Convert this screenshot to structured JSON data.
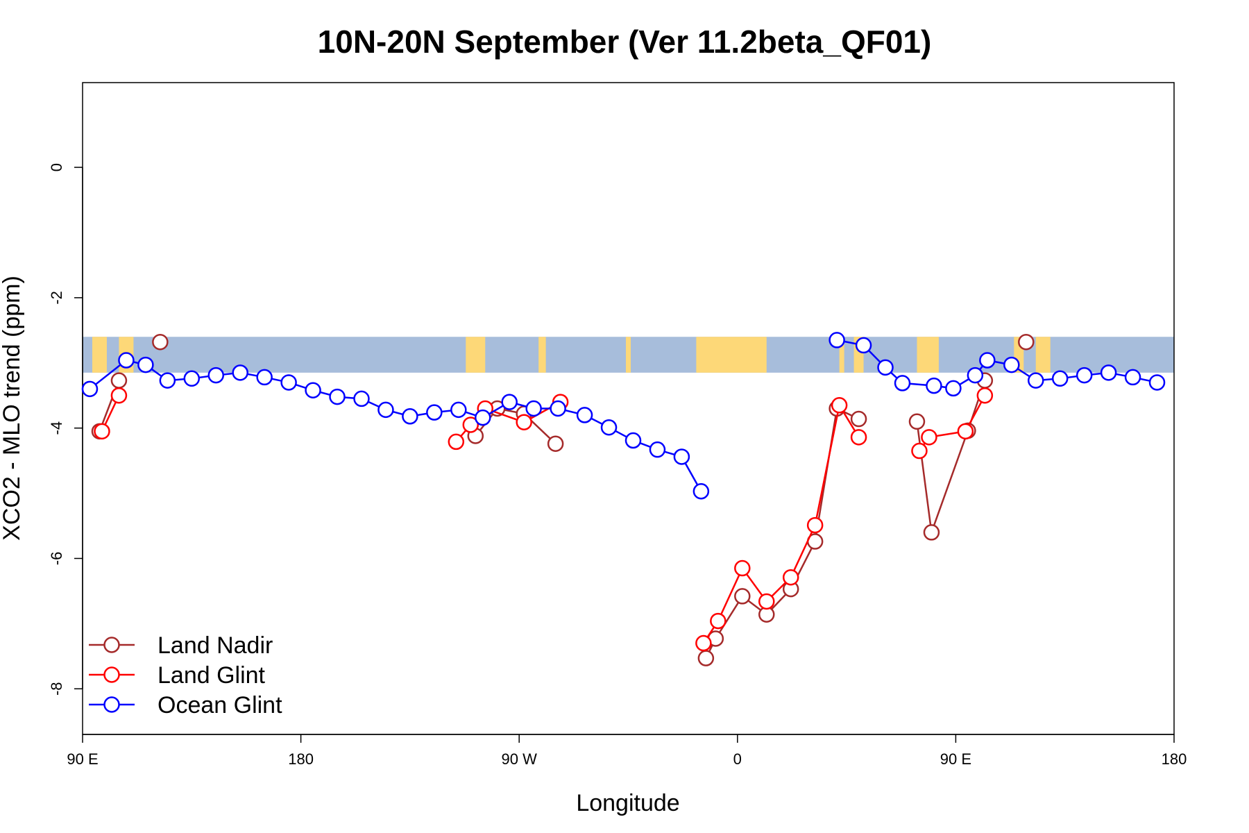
{
  "chart_data": {
    "type": "line",
    "title": "10N-20N September (Ver 11.2beta_QF01)",
    "xlabel": "Longitude",
    "ylabel": "XCO2 - MLO trend (ppm)",
    "x_unit": "degrees longitude (unwrapped, 90 E = 90, 180 = 180, 90 W = 270, 0 = 360, 90 E = 450, 180 = 540)",
    "xlim": [
      90,
      540
    ],
    "ylim": [
      -8.7,
      1.3
    ],
    "x_ticks": [
      {
        "value": 90,
        "label": "90 E"
      },
      {
        "value": 180,
        "label": "180"
      },
      {
        "value": 270,
        "label": "90 W"
      },
      {
        "value": 360,
        "label": "0"
      },
      {
        "value": 450,
        "label": "90 E"
      },
      {
        "value": 540,
        "label": "180"
      }
    ],
    "y_ticks": [
      {
        "value": 0,
        "label": "0"
      },
      {
        "value": -2,
        "label": "-2"
      },
      {
        "value": -4,
        "label": "-4"
      },
      {
        "value": -6,
        "label": "-6"
      },
      {
        "value": -8,
        "label": "-8"
      }
    ],
    "legend": {
      "position": "bottom-left",
      "entries": [
        {
          "name": "Land Nadir",
          "color": "#A52A2A"
        },
        {
          "name": "Land Glint",
          "color": "#FF0000"
        },
        {
          "name": "Ocean Glint",
          "color": "#0000FF"
        }
      ]
    },
    "map_band": {
      "description": "world map strip 10N-20N",
      "y_range": [
        -3.15,
        -2.6
      ],
      "ocean_color": "#A7BDDB",
      "land_color": "#FDD878",
      "land_segments": [
        [
          94,
          100
        ],
        [
          105,
          111
        ],
        [
          248,
          256
        ],
        [
          278,
          281
        ],
        [
          314,
          316
        ],
        [
          343,
          372
        ],
        [
          402,
          404
        ],
        [
          408,
          412
        ],
        [
          434,
          443
        ],
        [
          474,
          478
        ],
        [
          483,
          489
        ]
      ]
    },
    "series": [
      {
        "name": "Land Nadir",
        "color": "#A52A2A",
        "segments": [
          [
            [
              97,
              -4.05
            ],
            [
              105,
              -3.27
            ]
          ],
          [
            [
              122,
              -2.68
            ]
          ],
          [
            [
              252,
              -4.12
            ],
            [
              261,
              -3.7
            ],
            [
              272,
              -3.78
            ],
            [
              285,
              -4.24
            ]
          ],
          [
            [
              347,
              -7.53
            ],
            [
              351,
              -7.23
            ],
            [
              362,
              -6.58
            ],
            [
              372,
              -6.86
            ],
            [
              382,
              -6.47
            ],
            [
              392,
              -5.74
            ],
            [
              401,
              -3.7
            ],
            [
              410,
              -3.86
            ]
          ],
          [
            [
              434,
              -3.9
            ],
            [
              440,
              -5.6
            ],
            [
              455,
              -4.04
            ],
            [
              462,
              -3.27
            ]
          ],
          [
            [
              479,
              -2.68
            ]
          ]
        ]
      },
      {
        "name": "Land Glint",
        "color": "#FF0000",
        "segments": [
          [
            [
              98,
              -4.05
            ],
            [
              105,
              -3.5
            ]
          ],
          [
            [
              244,
              -4.21
            ],
            [
              250,
              -3.95
            ],
            [
              256,
              -3.7
            ],
            [
              272,
              -3.91
            ],
            [
              287,
              -3.6
            ]
          ],
          [
            [
              346,
              -7.3
            ],
            [
              352,
              -6.96
            ],
            [
              362,
              -6.15
            ],
            [
              372,
              -6.66
            ],
            [
              382,
              -6.29
            ],
            [
              392,
              -5.49
            ],
            [
              402,
              -3.65
            ],
            [
              410,
              -4.14
            ]
          ],
          [
            [
              435,
              -4.35
            ],
            [
              439,
              -4.14
            ],
            [
              454,
              -4.05
            ],
            [
              462,
              -3.5
            ]
          ]
        ]
      },
      {
        "name": "Ocean Glint",
        "color": "#0000FF",
        "segments": [
          [
            [
              93,
              -3.4
            ],
            [
              108,
              -2.96
            ],
            [
              116,
              -3.03
            ],
            [
              125,
              -3.27
            ],
            [
              135,
              -3.24
            ],
            [
              145,
              -3.19
            ],
            [
              155,
              -3.15
            ],
            [
              165,
              -3.22
            ],
            [
              175,
              -3.3
            ],
            [
              185,
              -3.42
            ],
            [
              195,
              -3.52
            ],
            [
              205,
              -3.55
            ],
            [
              215,
              -3.72
            ],
            [
              225,
              -3.82
            ],
            [
              235,
              -3.76
            ],
            [
              245,
              -3.72
            ],
            [
              255,
              -3.84
            ],
            [
              266,
              -3.6
            ],
            [
              276,
              -3.7
            ],
            [
              286,
              -3.7
            ],
            [
              297,
              -3.8
            ],
            [
              307,
              -3.99
            ],
            [
              317,
              -4.19
            ],
            [
              327,
              -4.33
            ],
            [
              337,
              -4.44
            ],
            [
              345,
              -4.97
            ]
          ],
          [
            [
              401,
              -2.65
            ],
            [
              412,
              -2.73
            ],
            [
              421,
              -3.07
            ],
            [
              428,
              -3.31
            ],
            [
              441,
              -3.35
            ],
            [
              449,
              -3.39
            ],
            [
              458,
              -3.19
            ],
            [
              463,
              -2.96
            ],
            [
              473,
              -3.03
            ],
            [
              483,
              -3.27
            ],
            [
              493,
              -3.24
            ],
            [
              503,
              -3.19
            ],
            [
              513,
              -3.15
            ],
            [
              523,
              -3.22
            ],
            [
              533,
              -3.3
            ]
          ]
        ]
      }
    ]
  }
}
